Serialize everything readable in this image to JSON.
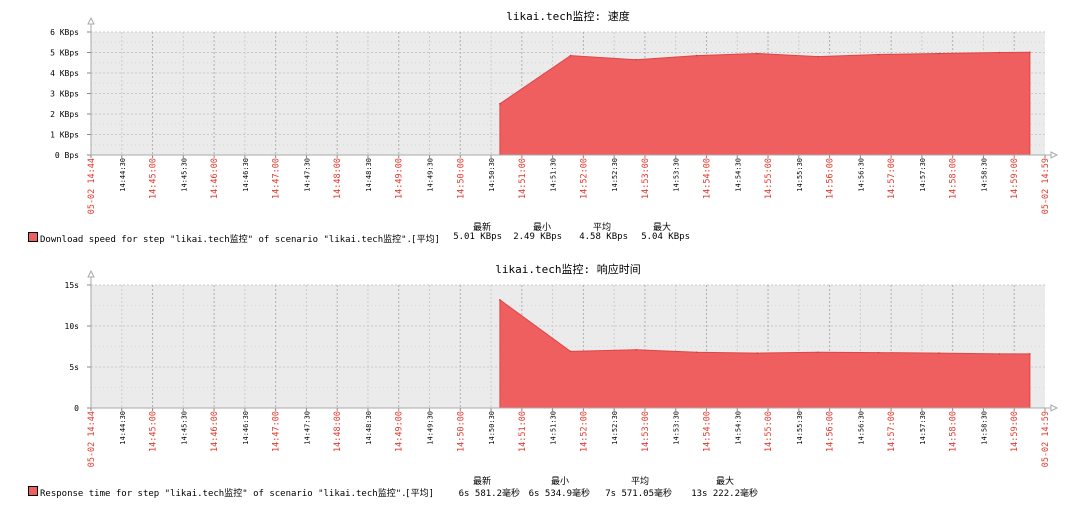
{
  "charts": [
    {
      "title": "likai.tech监控: 速度",
      "type": "area",
      "y_ticks": [
        "0 Bps",
        "1 KBps",
        "2 KBps",
        "3 KBps",
        "4 KBps",
        "5 KBps",
        "6 KBps"
      ],
      "y_max": 6,
      "legend": "Download speed for step \"likai.tech监控\" of scenario \"likai.tech监控\".",
      "stat_tag": "[平均]",
      "stat_headers": [
        "最新",
        "最小",
        "平均",
        "最大"
      ],
      "stats": [
        "5.01 KBps",
        "2.49 KBps",
        "4.58 KBps",
        "5.04 KBps"
      ]
    },
    {
      "title": "likai.tech监控: 响应时间",
      "type": "area",
      "y_ticks": [
        "0",
        "5s",
        "10s",
        "15s"
      ],
      "y_max": 15,
      "legend": "Response time for step \"likai.tech监控\" of scenario \"likai.tech监控\".",
      "stat_tag": "[平均]",
      "stat_headers": [
        "最新",
        "最小",
        "平均",
        "最大"
      ],
      "stats": [
        "6s 581.2毫秒",
        "6s 534.9毫秒",
        "7s 571.05毫秒",
        "13s 222.2毫秒"
      ]
    }
  ],
  "x_ticks": [
    {
      "t": "05-02 14:44",
      "major": true,
      "edge": true
    },
    {
      "t": "14:44:30",
      "major": false
    },
    {
      "t": "14:45:00",
      "major": true
    },
    {
      "t": "14:45:30",
      "major": false
    },
    {
      "t": "14:46:00",
      "major": true
    },
    {
      "t": "14:46:30",
      "major": false
    },
    {
      "t": "14:47:00",
      "major": true
    },
    {
      "t": "14:47:30",
      "major": false
    },
    {
      "t": "14:48:00",
      "major": true
    },
    {
      "t": "14:48:30",
      "major": false
    },
    {
      "t": "14:49:00",
      "major": true
    },
    {
      "t": "14:49:30",
      "major": false
    },
    {
      "t": "14:50:00",
      "major": true
    },
    {
      "t": "14:50:30",
      "major": false
    },
    {
      "t": "14:51:00",
      "major": true
    },
    {
      "t": "14:51:30",
      "major": false
    },
    {
      "t": "14:52:00",
      "major": true
    },
    {
      "t": "14:52:30",
      "major": false
    },
    {
      "t": "14:53:00",
      "major": true
    },
    {
      "t": "14:53:30",
      "major": false
    },
    {
      "t": "14:54:00",
      "major": true
    },
    {
      "t": "14:54:30",
      "major": false
    },
    {
      "t": "14:55:00",
      "major": true
    },
    {
      "t": "14:55:30",
      "major": false
    },
    {
      "t": "14:56:00",
      "major": true
    },
    {
      "t": "14:56:30",
      "major": false
    },
    {
      "t": "14:57:00",
      "major": true
    },
    {
      "t": "14:57:30",
      "major": false
    },
    {
      "t": "14:58:00",
      "major": true
    },
    {
      "t": "14:58:30",
      "major": false
    },
    {
      "t": "14:59:00",
      "major": true
    },
    {
      "t": "05-02 14:59",
      "major": true,
      "edge": true
    }
  ],
  "chart_data": [
    {
      "type": "area",
      "title": "likai.tech监控: 速度",
      "ylim": [
        0,
        6
      ],
      "unit": "KBps",
      "x_range": [
        "05-02 14:44",
        "05-02 14:59"
      ],
      "x": [
        "14:50:45",
        "14:51:55",
        "14:53:00",
        "14:54:00",
        "14:55:00",
        "14:56:00",
        "14:57:00",
        "14:58:00",
        "14:59:00",
        "14:59:30"
      ],
      "values": [
        2.5,
        4.85,
        4.65,
        4.85,
        4.95,
        4.8,
        4.9,
        4.95,
        5.0,
        5.01
      ],
      "color": "#ef5f5f",
      "legend": "Download speed for step \"likai.tech监控\" of scenario \"likai.tech监控\".",
      "grid": true
    },
    {
      "type": "area",
      "title": "likai.tech监控: 响应时间",
      "ylim": [
        0,
        15
      ],
      "unit": "s",
      "x_range": [
        "05-02 14:44",
        "05-02 14:59"
      ],
      "x": [
        "14:50:45",
        "14:51:55",
        "14:53:00",
        "14:54:00",
        "14:55:00",
        "14:56:00",
        "14:57:00",
        "14:58:00",
        "14:59:00",
        "14:59:30"
      ],
      "values": [
        13.2,
        6.9,
        7.1,
        6.8,
        6.7,
        6.8,
        6.75,
        6.7,
        6.6,
        6.6
      ],
      "color": "#ef5f5f",
      "legend": "Response time for step \"likai.tech监控\" of scenario \"likai.tech监控\".",
      "grid": true
    }
  ]
}
